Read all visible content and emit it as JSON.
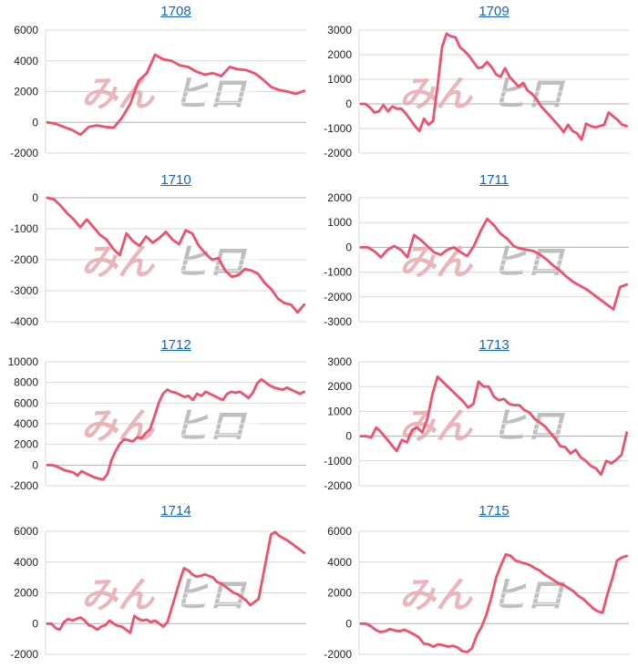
{
  "theme": {
    "line_color": "#f0506e",
    "grid_color": "#d9d9d9",
    "zero_color": "#b0b0b0",
    "title_color": "#1565c0"
  },
  "chart_data": [
    {
      "type": "line",
      "title": "1708",
      "ylim": [
        -2000,
        6000
      ],
      "yticks": [
        6000,
        4000,
        2000,
        0,
        -2000
      ],
      "grid": true,
      "y": [
        0,
        -100,
        -300,
        -500,
        -800,
        -300,
        -200,
        -300,
        -350,
        300,
        1200,
        2700,
        3200,
        4400,
        4100,
        4000,
        3700,
        3600,
        3300,
        3100,
        3200,
        3000,
        3600,
        3450,
        3400,
        3200,
        2800,
        2300,
        2100,
        2000,
        1850,
        2050
      ]
    },
    {
      "type": "line",
      "title": "1709",
      "ylim": [
        -2000,
        3000
      ],
      "yticks": [
        3000,
        2000,
        1000,
        0,
        -1000,
        -2000
      ],
      "grid": true,
      "y": [
        0,
        0,
        -150,
        -350,
        -300,
        -50,
        -300,
        -100,
        -200,
        -200,
        -400,
        -650,
        -900,
        -1100,
        -600,
        -850,
        -700,
        700,
        2300,
        2850,
        2750,
        2700,
        2300,
        2150,
        1950,
        1700,
        1450,
        1500,
        1700,
        1500,
        1200,
        1100,
        1450,
        1100,
        900,
        700,
        850,
        550,
        400,
        200,
        -100,
        -300,
        -500,
        -700,
        -900,
        -1150,
        -850,
        -1100,
        -1200,
        -1450,
        -800,
        -900,
        -950,
        -900,
        -850,
        -350,
        -500,
        -650,
        -850,
        -900
      ]
    },
    {
      "type": "line",
      "title": "1710",
      "ylim": [
        -4000,
        0
      ],
      "yticks": [
        0,
        -1000,
        -2000,
        -3000,
        -4000
      ],
      "grid": true,
      "y": [
        0,
        -50,
        -250,
        -500,
        -700,
        -950,
        -700,
        -950,
        -1200,
        -1350,
        -1650,
        -1850,
        -1150,
        -1400,
        -1550,
        -1250,
        -1450,
        -1300,
        -1100,
        -1350,
        -1500,
        -1050,
        -1150,
        -1550,
        -1800,
        -2000,
        -1950,
        -2350,
        -2550,
        -2500,
        -2300,
        -2350,
        -2450,
        -2750,
        -2950,
        -3250,
        -3400,
        -3450,
        -3700,
        -3450
      ]
    },
    {
      "type": "line",
      "title": "1711",
      "ylim": [
        -3000,
        2000
      ],
      "yticks": [
        2000,
        1000,
        0,
        -1000,
        -2000,
        -3000
      ],
      "grid": true,
      "y": [
        0,
        0,
        -150,
        -400,
        -100,
        50,
        -100,
        -400,
        500,
        300,
        50,
        -200,
        -300,
        -100,
        0,
        -200,
        -350,
        50,
        650,
        1150,
        900,
        550,
        350,
        50,
        -50,
        -100,
        -150,
        -300,
        -500,
        -750,
        -950,
        -1200,
        -1400,
        -1550,
        -1700,
        -1900,
        -2100,
        -2300,
        -2500,
        -1600,
        -1500
      ]
    },
    {
      "type": "line",
      "title": "1712",
      "ylim": [
        -2000,
        10000
      ],
      "yticks": [
        10000,
        8000,
        6000,
        4000,
        2000,
        0,
        -2000
      ],
      "grid": true,
      "y": [
        0,
        0,
        -100,
        -300,
        -500,
        -600,
        -700,
        -1000,
        -600,
        -800,
        -1000,
        -1200,
        -1300,
        -1400,
        -900,
        500,
        1400,
        2100,
        2500,
        2400,
        2300,
        2700,
        2600,
        3100,
        3500,
        4700,
        6000,
        6900,
        7300,
        7100,
        7000,
        6800,
        6600,
        6700,
        6300,
        6900,
        6700,
        7100,
        6900,
        6700,
        6500,
        6300,
        6900,
        7100,
        7000,
        7100,
        6800,
        6500,
        7000,
        7900,
        8300,
        8000,
        7700,
        7500,
        7400,
        7300,
        7500,
        7300,
        7100,
        6900,
        7100
      ]
    },
    {
      "type": "line",
      "title": "1713",
      "ylim": [
        -2000,
        3000
      ],
      "yticks": [
        3000,
        2000,
        1000,
        0,
        -1000,
        -2000
      ],
      "grid": true,
      "y": [
        0,
        0,
        -50,
        350,
        150,
        -100,
        -350,
        -600,
        -150,
        -250,
        250,
        350,
        150,
        700,
        1700,
        2400,
        2200,
        2000,
        1800,
        1600,
        1400,
        1150,
        1300,
        2200,
        2000,
        2000,
        1600,
        1450,
        1500,
        1300,
        1250,
        1250,
        1050,
        950,
        700,
        550,
        400,
        150,
        -100,
        -400,
        -450,
        -700,
        -550,
        -850,
        -1000,
        -1200,
        -1300,
        -1550,
        -1000,
        -1100,
        -950,
        -750,
        150
      ]
    },
    {
      "type": "line",
      "title": "1714",
      "ylim": [
        -2000,
        6000
      ],
      "yticks": [
        6000,
        4000,
        2000,
        0,
        -2000
      ],
      "grid": true,
      "y": [
        0,
        0,
        -300,
        -400,
        100,
        300,
        200,
        300,
        400,
        200,
        -100,
        -200,
        -400,
        -200,
        -100,
        200,
        0,
        -150,
        -200,
        -400,
        -600,
        500,
        300,
        200,
        250,
        100,
        200,
        0,
        -200,
        100,
        1000,
        1900,
        2800,
        3600,
        3450,
        3200,
        3050,
        3100,
        3200,
        3100,
        3000,
        2700,
        2600,
        2400,
        2200,
        2000,
        1900,
        1700,
        1500,
        1200,
        1400,
        1600,
        3000,
        4400,
        5800,
        5950,
        5700,
        5550,
        5400,
        5200,
        5000,
        4800,
        4600
      ]
    },
    {
      "type": "line",
      "title": "1715",
      "ylim": [
        -2000,
        6000
      ],
      "yticks": [
        6000,
        4000,
        2000,
        0,
        -2000
      ],
      "grid": true,
      "y": [
        0,
        0,
        -150,
        -400,
        -550,
        -500,
        -350,
        -450,
        -500,
        -400,
        -550,
        -700,
        -900,
        -1300,
        -1350,
        -1500,
        -1350,
        -1400,
        -1500,
        -1450,
        -1550,
        -1800,
        -1850,
        -1600,
        -750,
        -200,
        600,
        1700,
        3000,
        3800,
        4500,
        4400,
        4100,
        4000,
        3900,
        3800,
        3600,
        3450,
        3200,
        3000,
        2800,
        2600,
        2500,
        2300,
        2100,
        1800,
        1600,
        1300,
        1000,
        800,
        700,
        1900,
        2900,
        4100,
        4300,
        4400
      ]
    }
  ]
}
